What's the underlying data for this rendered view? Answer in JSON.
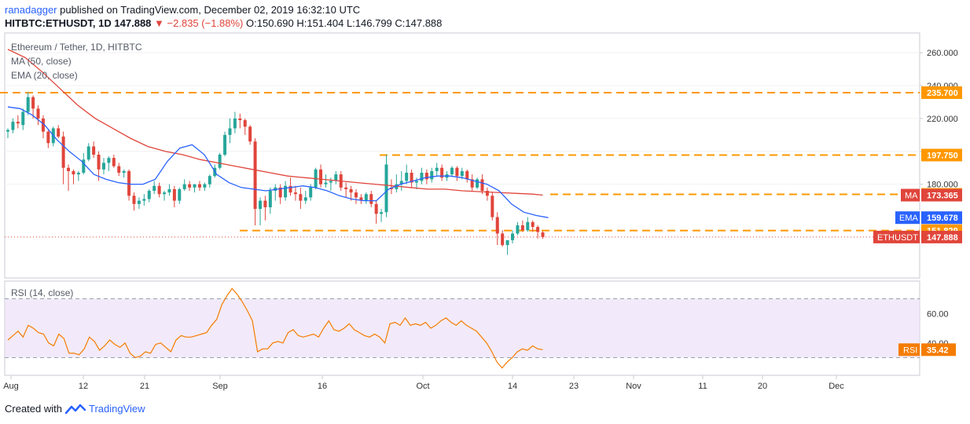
{
  "header": {
    "author": "ranadagger",
    "published": "published on TradingView.com, December 02, 2019 16:32:10 UTC",
    "symbol": "HITBTC:ETHUSDT, 1D",
    "last": "147.888",
    "change": "−2.835 (−1.88%)",
    "ohlc": "O:150.690  H:151.404  L:146.799  C:147.888"
  },
  "footer": {
    "created_with": "Created with",
    "brand": "TradingView"
  },
  "legend": {
    "title": "Ethereum / Tether, 1D, HITBTC",
    "ma": "MA (50, close)",
    "ema": "EMA (20, close)",
    "rsi": "RSI (14, close)"
  },
  "colors": {
    "up": "#26a69a",
    "down": "#e0453b",
    "ma": "#e0453b",
    "ema": "#2962ff",
    "level": "#ff9800",
    "rsi_line": "#f57c00",
    "rsi_band": "#e9dcf7",
    "price_badge": "#e0453b"
  },
  "chart_data": [
    {
      "type": "candlestick",
      "title": "Ethereum / Tether, 1D, HITBTC",
      "ylim": [
        123,
        272
      ],
      "y_ticks": [
        "260.000",
        "240.000",
        "220.000",
        "200.000",
        "180.000"
      ],
      "x_ticks": [
        "Aug",
        "12",
        "21",
        "Sep",
        "16",
        "Oct",
        "14",
        "23",
        "Nov",
        "11",
        "20",
        "Dec"
      ],
      "levels": [
        {
          "value": 235.7,
          "label": "235.700"
        },
        {
          "value": 197.75,
          "label": "197.750"
        },
        {
          "value": 173.841,
          "label": "173.841"
        },
        {
          "value": 151.829,
          "label": "151.829"
        }
      ],
      "badges": [
        {
          "name": "MA",
          "label": "173.365",
          "value": 173.365,
          "color": "#e0453b"
        },
        {
          "name": "EMA",
          "label": "159.678",
          "value": 159.678,
          "color": "#2962ff"
        },
        {
          "name": "ETHUSDT",
          "label": "147.888",
          "value": 147.888,
          "color": "#e0453b"
        }
      ],
      "last_price": 147.888,
      "candles": [
        [
          212,
          214,
          208,
          213
        ],
        [
          213,
          220,
          211,
          218
        ],
        [
          218,
          222,
          214,
          217
        ],
        [
          216,
          226,
          213,
          224
        ],
        [
          224,
          236,
          222,
          233
        ],
        [
          233,
          234,
          220,
          226
        ],
        [
          226,
          228,
          216,
          220
        ],
        [
          220,
          222,
          208,
          212
        ],
        [
          212,
          213,
          202,
          205
        ],
        [
          205,
          215,
          203,
          214
        ],
        [
          214,
          216,
          208,
          209
        ],
        [
          209,
          212,
          180,
          190
        ],
        [
          190,
          192,
          176,
          188
        ],
        [
          188,
          189,
          180,
          186
        ],
        [
          186,
          188,
          182,
          187
        ],
        [
          187,
          199,
          186,
          195
        ],
        [
          195,
          205,
          194,
          203
        ],
        [
          203,
          206,
          196,
          198
        ],
        [
          198,
          200,
          182,
          189
        ],
        [
          189,
          196,
          186,
          193
        ],
        [
          193,
          197,
          188,
          196
        ],
        [
          196,
          198,
          190,
          191
        ],
        [
          191,
          193,
          185,
          187
        ],
        [
          187,
          189,
          184,
          188
        ],
        [
          188,
          189,
          170,
          173
        ],
        [
          173,
          175,
          164,
          168
        ],
        [
          168,
          172,
          165,
          170
        ],
        [
          170,
          174,
          167,
          171
        ],
        [
          171,
          177,
          169,
          176
        ],
        [
          176,
          182,
          174,
          179
        ],
        [
          179,
          181,
          172,
          174
        ],
        [
          174,
          176,
          170,
          175
        ],
        [
          175,
          180,
          173,
          177
        ],
        [
          177,
          179,
          166,
          170
        ],
        [
          170,
          178,
          168,
          177
        ],
        [
          177,
          183,
          176,
          180
        ],
        [
          180,
          182,
          176,
          178
        ],
        [
          178,
          180,
          175,
          180
        ],
        [
          180,
          182,
          176,
          178
        ],
        [
          178,
          181,
          176,
          180
        ],
        [
          180,
          186,
          178,
          185
        ],
        [
          185,
          192,
          184,
          190
        ],
        [
          190,
          199,
          189,
          198
        ],
        [
          198,
          212,
          197,
          210
        ],
        [
          210,
          220,
          205,
          214
        ],
        [
          214,
          224,
          211,
          220
        ],
        [
          220,
          223,
          214,
          219
        ],
        [
          219,
          220,
          210,
          215
        ],
        [
          215,
          216,
          204,
          206
        ],
        [
          206,
          208,
          155,
          165
        ],
        [
          165,
          172,
          155,
          170
        ],
        [
          170,
          173,
          158,
          166
        ],
        [
          166,
          178,
          162,
          176
        ],
        [
          176,
          180,
          170,
          178
        ],
        [
          178,
          180,
          168,
          172
        ],
        [
          172,
          182,
          170,
          179
        ],
        [
          179,
          184,
          173,
          175
        ],
        [
          175,
          179,
          170,
          174
        ],
        [
          174,
          178,
          165,
          170
        ],
        [
          170,
          176,
          168,
          172
        ],
        [
          172,
          180,
          170,
          178
        ],
        [
          178,
          190,
          177,
          189
        ],
        [
          189,
          192,
          178,
          180
        ],
        [
          180,
          186,
          178,
          181
        ],
        [
          181,
          184,
          176,
          182
        ],
        [
          182,
          188,
          180,
          186
        ],
        [
          186,
          188,
          176,
          178
        ],
        [
          178,
          181,
          172,
          177
        ],
        [
          177,
          179,
          170,
          175
        ],
        [
          175,
          177,
          168,
          172
        ],
        [
          172,
          174,
          168,
          170
        ],
        [
          170,
          175,
          168,
          174
        ],
        [
          174,
          176,
          166,
          168
        ],
        [
          168,
          170,
          156,
          162
        ],
        [
          162,
          165,
          157,
          163
        ],
        [
          163,
          198,
          160,
          192
        ],
        [
          178,
          183,
          174,
          177
        ],
        [
          177,
          186,
          175,
          180
        ],
        [
          180,
          188,
          176,
          182
        ],
        [
          182,
          192,
          180,
          187
        ],
        [
          187,
          189,
          178,
          181
        ],
        [
          181,
          184,
          177,
          182
        ],
        [
          182,
          190,
          180,
          187
        ],
        [
          187,
          189,
          180,
          183
        ],
        [
          183,
          190,
          181,
          188
        ],
        [
          188,
          193,
          185,
          190
        ],
        [
          190,
          192,
          182,
          184
        ],
        [
          184,
          188,
          182,
          186
        ],
        [
          186,
          191,
          185,
          190
        ],
        [
          190,
          191,
          182,
          185
        ],
        [
          185,
          190,
          183,
          188
        ],
        [
          188,
          189,
          181,
          183
        ],
        [
          183,
          186,
          176,
          178
        ],
        [
          178,
          184,
          177,
          183
        ],
        [
          183,
          186,
          174,
          176
        ],
        [
          176,
          178,
          170,
          173
        ],
        [
          173,
          175,
          158,
          160
        ],
        [
          160,
          163,
          143,
          150
        ],
        [
          150,
          152,
          142,
          143
        ],
        [
          143,
          145,
          137,
          146
        ],
        [
          146,
          152,
          144,
          150
        ],
        [
          150,
          157,
          149,
          155
        ],
        [
          155,
          158,
          151,
          152
        ],
        [
          152,
          160,
          151,
          157
        ],
        [
          157,
          158,
          151,
          154
        ],
        [
          154,
          155,
          147,
          151
        ],
        [
          150.69,
          151.404,
          146.799,
          147.888
        ]
      ],
      "ma50": [
        [
          0,
          262
        ],
        [
          10,
          257
        ],
        [
          20,
          248
        ],
        [
          30,
          238
        ],
        [
          40,
          228
        ],
        [
          50,
          220
        ],
        [
          60,
          214
        ],
        [
          70,
          208
        ],
        [
          80,
          203
        ],
        [
          90,
          200
        ],
        [
          100,
          198
        ],
        [
          110,
          195
        ],
        [
          120,
          193
        ],
        [
          130,
          191
        ],
        [
          140,
          189
        ],
        [
          150,
          187
        ],
        [
          160,
          185
        ],
        [
          170,
          184
        ],
        [
          180,
          183
        ],
        [
          190,
          182
        ],
        [
          200,
          181
        ],
        [
          210,
          180
        ],
        [
          220,
          179
        ],
        [
          230,
          178
        ],
        [
          240,
          177
        ],
        [
          250,
          177
        ],
        [
          260,
          176
        ],
        [
          270,
          175.5
        ],
        [
          280,
          175
        ],
        [
          290,
          174.5
        ],
        [
          300,
          174
        ],
        [
          306,
          173.4
        ]
      ],
      "ema20": [
        [
          0,
          227
        ],
        [
          8,
          226
        ],
        [
          16,
          222
        ],
        [
          24,
          216
        ],
        [
          32,
          207
        ],
        [
          40,
          200
        ],
        [
          48,
          194
        ],
        [
          56,
          186
        ],
        [
          64,
          183
        ],
        [
          72,
          181
        ],
        [
          80,
          180
        ],
        [
          88,
          180
        ],
        [
          96,
          183
        ],
        [
          104,
          194
        ],
        [
          112,
          202
        ],
        [
          120,
          204
        ],
        [
          128,
          198
        ],
        [
          136,
          186
        ],
        [
          144,
          181
        ],
        [
          152,
          178
        ],
        [
          160,
          177
        ],
        [
          168,
          176
        ],
        [
          176,
          177
        ],
        [
          184,
          178
        ],
        [
          192,
          179
        ],
        [
          200,
          178
        ],
        [
          208,
          176
        ],
        [
          216,
          173
        ],
        [
          224,
          171
        ],
        [
          232,
          170
        ],
        [
          240,
          170
        ],
        [
          248,
          177
        ],
        [
          256,
          180
        ],
        [
          264,
          182
        ],
        [
          272,
          184
        ],
        [
          280,
          185
        ],
        [
          288,
          185
        ],
        [
          296,
          184
        ],
        [
          304,
          182
        ],
        [
          312,
          180
        ],
        [
          320,
          176
        ],
        [
          328,
          168
        ],
        [
          336,
          163
        ],
        [
          344,
          161
        ],
        [
          352,
          159.7
        ]
      ]
    },
    {
      "type": "line",
      "title": "RSI (14, close)",
      "ylim": [
        18,
        82
      ],
      "y_ticks": [
        "60.00",
        "40.00"
      ],
      "bands": [
        70,
        30
      ],
      "current": {
        "label": "35.42",
        "value": 35.42,
        "name": "RSI"
      },
      "values": [
        42,
        45,
        48,
        44,
        52,
        50,
        47,
        46,
        40,
        38,
        46,
        43,
        33,
        33,
        32,
        36,
        44,
        41,
        35,
        38,
        42,
        39,
        37,
        40,
        33,
        30,
        31,
        34,
        33,
        39,
        40,
        37,
        34,
        42,
        45,
        44,
        44,
        45,
        46,
        47,
        52,
        56,
        66,
        72,
        77,
        73,
        68,
        62,
        55,
        34,
        36,
        36,
        40,
        41,
        40,
        47,
        49,
        45,
        44,
        45,
        46,
        44,
        50,
        55,
        49,
        48,
        50,
        53,
        49,
        47,
        45,
        44,
        46,
        44,
        40,
        53,
        54,
        52,
        57,
        52,
        53,
        52,
        54,
        50,
        52,
        55,
        57,
        54,
        52,
        55,
        52,
        50,
        48,
        44,
        40,
        34,
        27,
        23,
        27,
        30,
        34,
        36,
        35,
        38,
        36,
        35.42
      ]
    }
  ]
}
